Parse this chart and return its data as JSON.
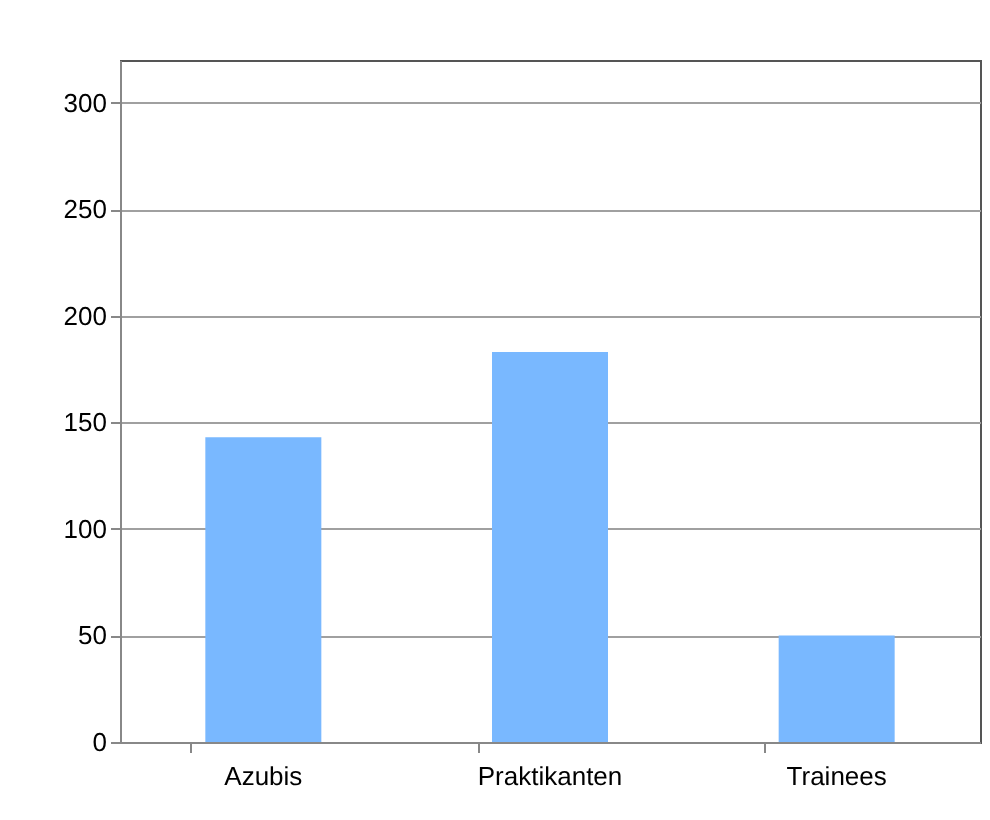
{
  "chart_data": {
    "type": "bar",
    "categories": [
      "Azubis",
      "Praktikanten",
      "Trainees"
    ],
    "values": [
      143,
      183,
      50
    ],
    "color": "#79b8ff",
    "ylim": [
      0,
      320
    ],
    "yticks": [
      0,
      50,
      100,
      150,
      200,
      250,
      300
    ],
    "grid": "y"
  }
}
